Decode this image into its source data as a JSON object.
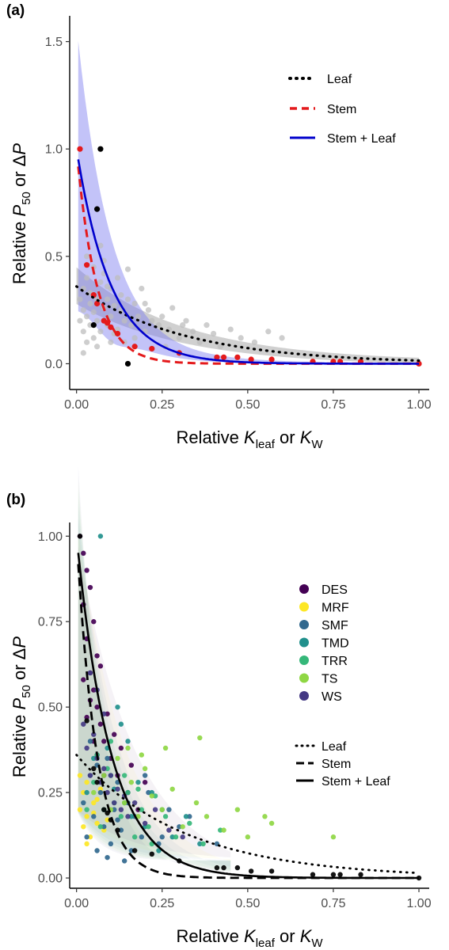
{
  "chart_data": [
    {
      "panel": "(a)",
      "type": "scatter",
      "xlabel": "Relative K_leaf or K_W",
      "ylabel": "Relative P50 or ΔP",
      "xlim": [
        -0.02,
        1.03
      ],
      "ylim": [
        -0.12,
        1.62
      ],
      "xticks": [
        "0.00",
        "0.25",
        "0.50",
        "0.75",
        "1.00"
      ],
      "yticks": [
        "0.0",
        "0.5",
        "1.0",
        "1.5"
      ],
      "xtick_values": [
        0,
        0.25,
        0.5,
        0.75,
        1.0
      ],
      "ytick_values": [
        0,
        0.5,
        1.0,
        1.5
      ],
      "grid": false,
      "legend_position": "top-right",
      "legend": [
        {
          "label": "Leaf",
          "style": "dotted",
          "color": "#000000"
        },
        {
          "label": "Stem",
          "style": "dashed",
          "color": "#e41a1c"
        },
        {
          "label": "Stem + Leaf",
          "style": "solid",
          "color": "#0000cc"
        }
      ],
      "series": [
        {
          "name": "Leaf",
          "kind": "scatter",
          "color": "#bdbdbd",
          "x": [
            0.01,
            0.01,
            0.02,
            0.02,
            0.02,
            0.03,
            0.03,
            0.03,
            0.04,
            0.04,
            0.04,
            0.05,
            0.05,
            0.05,
            0.06,
            0.06,
            0.07,
            0.07,
            0.08,
            0.08,
            0.09,
            0.09,
            0.1,
            0.1,
            0.11,
            0.12,
            0.12,
            0.13,
            0.14,
            0.15,
            0.16,
            0.17,
            0.18,
            0.19,
            0.2,
            0.21,
            0.22,
            0.24,
            0.25,
            0.27,
            0.28,
            0.3,
            0.32,
            0.34,
            0.36,
            0.38,
            0.4,
            0.42,
            0.45,
            0.48,
            0.52,
            0.56,
            0.6,
            0.03,
            0.05,
            0.08,
            0.11,
            0.14,
            0.02,
            0.06,
            0.09,
            0.13,
            0.17,
            0.07,
            0.1,
            0.15,
            0.2,
            0.26,
            0.31
          ],
          "y": [
            0.3,
            0.2,
            0.25,
            0.35,
            0.15,
            0.22,
            0.4,
            0.1,
            0.28,
            0.18,
            0.33,
            0.45,
            0.12,
            0.24,
            0.3,
            0.2,
            0.38,
            0.15,
            0.26,
            0.42,
            0.18,
            0.3,
            0.22,
            0.35,
            0.27,
            0.16,
            0.4,
            0.25,
            0.2,
            0.3,
            0.18,
            0.28,
            0.22,
            0.35,
            0.15,
            0.25,
            0.2,
            0.18,
            0.22,
            0.16,
            0.26,
            0.12,
            0.2,
            0.15,
            0.1,
            0.18,
            0.14,
            0.08,
            0.16,
            0.12,
            0.1,
            0.15,
            0.12,
            0.5,
            0.32,
            0.48,
            0.14,
            0.1,
            0.05,
            0.08,
            0.36,
            0.32,
            0.12,
            0.55,
            0.1,
            0.44,
            0.28,
            0.08,
            0.18
          ]
        },
        {
          "name": "Stem",
          "kind": "scatter",
          "color": "#e41a1c",
          "x": [
            0.01,
            0.03,
            0.05,
            0.06,
            0.08,
            0.09,
            0.1,
            0.12,
            0.17,
            0.22,
            0.3,
            0.41,
            0.43,
            0.47,
            0.51,
            0.57,
            0.69,
            0.75,
            0.77,
            0.83,
            1.0
          ],
          "y": [
            1.0,
            0.46,
            0.32,
            0.28,
            0.2,
            0.19,
            0.17,
            0.14,
            0.08,
            0.07,
            0.05,
            0.03,
            0.03,
            0.03,
            0.02,
            0.02,
            0.01,
            0.01,
            0.01,
            0.01,
            0.0
          ]
        },
        {
          "name": "Stem + Leaf",
          "kind": "scatter",
          "color": "#000000",
          "x": [
            0.07,
            0.06,
            0.05,
            0.15
          ],
          "y": [
            1.0,
            0.72,
            0.18,
            0.0
          ]
        },
        {
          "name": "Leaf",
          "kind": "line",
          "style": "dotted",
          "color": "#000000",
          "model": "0.36*exp(-3.2*x)"
        },
        {
          "name": "Stem",
          "kind": "line",
          "style": "dashed",
          "color": "#e41a1c",
          "model": "1.0*exp(-17*x)"
        },
        {
          "name": "Stem + Leaf",
          "kind": "line",
          "style": "solid",
          "color": "#0000cc",
          "model": "1.0*exp(-10*x)"
        }
      ]
    },
    {
      "panel": "(b)",
      "type": "scatter",
      "xlabel": "Relative K_leaf or K_W",
      "ylabel": "Relative P50 or ΔP",
      "xlim": [
        -0.02,
        1.03
      ],
      "ylim": [
        -0.03,
        1.04
      ],
      "xticks": [
        "0.00",
        "0.25",
        "0.50",
        "0.75",
        "1.00"
      ],
      "yticks": [
        "0.00",
        "0.25",
        "0.50",
        "0.75",
        "1.00"
      ],
      "xtick_values": [
        0,
        0.25,
        0.5,
        0.75,
        1.0
      ],
      "ytick_values": [
        0,
        0.25,
        0.5,
        0.75,
        1.0
      ],
      "grid": false,
      "legend_position": "right",
      "biome_legend": [
        {
          "label": "DES",
          "color": "#440154"
        },
        {
          "label": "MRF",
          "color": "#fde725"
        },
        {
          "label": "SMF",
          "color": "#31688e"
        },
        {
          "label": "TMD",
          "color": "#21908c"
        },
        {
          "label": "TRR",
          "color": "#35b779"
        },
        {
          "label": "TS",
          "color": "#8fd744"
        },
        {
          "label": "WS",
          "color": "#443983"
        }
      ],
      "line_legend": [
        {
          "label": "Leaf",
          "style": "dotted"
        },
        {
          "label": "Stem",
          "style": "dashed"
        },
        {
          "label": "Stem + Leaf",
          "style": "solid"
        }
      ],
      "series": [
        {
          "name": "DES",
          "color": "#440154",
          "x": [
            0.01,
            0.02,
            0.02,
            0.03,
            0.03,
            0.04,
            0.04,
            0.05,
            0.05,
            0.06,
            0.06,
            0.07,
            0.07,
            0.08,
            0.09,
            0.1,
            0.11,
            0.12,
            0.13,
            0.15,
            0.16,
            0.18,
            0.2,
            0.02,
            0.03,
            0.04,
            0.05,
            0.06,
            0.08
          ],
          "y": [
            1.0,
            0.95,
            0.8,
            0.9,
            0.7,
            0.85,
            0.6,
            0.75,
            0.55,
            0.65,
            0.5,
            0.45,
            0.62,
            0.4,
            0.48,
            0.35,
            0.42,
            0.3,
            0.38,
            0.25,
            0.33,
            0.2,
            0.28,
            0.58,
            0.47,
            0.52,
            0.4,
            0.36,
            0.3
          ]
        },
        {
          "name": "MRF",
          "color": "#fde725",
          "x": [
            0.01,
            0.02,
            0.02,
            0.03,
            0.03,
            0.04,
            0.05,
            0.06,
            0.07,
            0.08,
            0.01,
            0.03,
            0.05,
            0.06,
            0.09
          ],
          "y": [
            0.2,
            0.15,
            0.25,
            0.18,
            0.28,
            0.12,
            0.22,
            0.16,
            0.26,
            0.14,
            0.3,
            0.1,
            0.19,
            0.23,
            0.17
          ]
        },
        {
          "name": "SMF",
          "color": "#31688e",
          "x": [
            0.02,
            0.03,
            0.04,
            0.05,
            0.06,
            0.07,
            0.08,
            0.09,
            0.1,
            0.11,
            0.12,
            0.13,
            0.14,
            0.15,
            0.17,
            0.19,
            0.21,
            0.24,
            0.27,
            0.3,
            0.04,
            0.06,
            0.09,
            0.12,
            0.16,
            0.2,
            0.25,
            0.33,
            0.41
          ],
          "y": [
            0.22,
            0.12,
            0.3,
            0.18,
            0.08,
            0.25,
            0.15,
            0.35,
            0.1,
            0.2,
            0.28,
            0.14,
            0.05,
            0.22,
            0.18,
            0.12,
            0.25,
            0.1,
            0.2,
            0.15,
            0.4,
            0.33,
            0.06,
            0.17,
            0.08,
            0.3,
            0.12,
            0.18,
            0.1
          ]
        },
        {
          "name": "TMD",
          "color": "#21908c",
          "x": [
            0.07,
            0.03,
            0.05,
            0.08,
            0.1,
            0.12,
            0.14,
            0.16,
            0.18,
            0.2,
            0.22,
            0.25,
            0.28,
            0.32,
            0.36,
            0.13,
            0.15,
            0.09,
            0.11,
            0.24
          ],
          "y": [
            1.0,
            0.25,
            0.35,
            0.2,
            0.3,
            0.5,
            0.22,
            0.18,
            0.28,
            0.15,
            0.25,
            0.2,
            0.12,
            0.18,
            0.1,
            0.45,
            0.4,
            0.38,
            0.26,
            0.08
          ]
        },
        {
          "name": "TRR",
          "color": "#35b779",
          "x": [
            0.03,
            0.05,
            0.07,
            0.09,
            0.11,
            0.13,
            0.15,
            0.17,
            0.19,
            0.21,
            0.23,
            0.26,
            0.29,
            0.33,
            0.37,
            0.42,
            0.06,
            0.1,
            0.14,
            0.18,
            0.22
          ],
          "y": [
            0.2,
            0.28,
            0.15,
            0.32,
            0.22,
            0.18,
            0.25,
            0.12,
            0.2,
            0.15,
            0.24,
            0.18,
            0.12,
            0.16,
            0.1,
            0.14,
            0.36,
            0.4,
            0.3,
            0.26,
            0.1
          ]
        },
        {
          "name": "TS",
          "color": "#8fd744",
          "x": [
            0.05,
            0.08,
            0.1,
            0.12,
            0.14,
            0.16,
            0.18,
            0.2,
            0.22,
            0.25,
            0.28,
            0.31,
            0.35,
            0.38,
            0.43,
            0.47,
            0.5,
            0.55,
            0.57,
            0.75,
            0.36,
            0.26,
            0.15,
            0.19
          ],
          "y": [
            0.25,
            0.3,
            0.2,
            0.35,
            0.22,
            0.28,
            0.18,
            0.32,
            0.24,
            0.2,
            0.26,
            0.15,
            0.22,
            0.18,
            0.14,
            0.2,
            0.12,
            0.18,
            0.16,
            0.12,
            0.41,
            0.38,
            0.38,
            0.36
          ]
        },
        {
          "name": "WS",
          "color": "#443983",
          "x": [
            0.02,
            0.03,
            0.04,
            0.05,
            0.06,
            0.07,
            0.08,
            0.09,
            0.1,
            0.11,
            0.12,
            0.13,
            0.14,
            0.15,
            0.17,
            0.2,
            0.23,
            0.27,
            0.31,
            0.04,
            0.06,
            0.08
          ],
          "y": [
            0.45,
            0.38,
            0.3,
            0.42,
            0.35,
            0.28,
            0.32,
            0.25,
            0.3,
            0.22,
            0.26,
            0.2,
            0.24,
            0.18,
            0.22,
            0.16,
            0.2,
            0.14,
            0.12,
            0.6,
            0.55,
            0.48
          ]
        },
        {
          "name": "Stem",
          "kind": "scatter",
          "color": "#000000",
          "x": [
            0.01,
            0.03,
            0.05,
            0.06,
            0.08,
            0.09,
            0.1,
            0.12,
            0.17,
            0.22,
            0.3,
            0.41,
            0.43,
            0.47,
            0.51,
            0.57,
            0.69,
            0.75,
            0.77,
            0.83,
            1.0
          ],
          "y": [
            1.0,
            0.46,
            0.32,
            0.28,
            0.2,
            0.19,
            0.17,
            0.14,
            0.08,
            0.07,
            0.05,
            0.03,
            0.03,
            0.03,
            0.02,
            0.02,
            0.01,
            0.01,
            0.01,
            0.01,
            0.0
          ]
        }
      ]
    }
  ],
  "colors": {
    "leaf_ribbon": "#a9a9a9",
    "stem_leaf_ribbon": "#7b7bf0",
    "axis": "#000000"
  }
}
